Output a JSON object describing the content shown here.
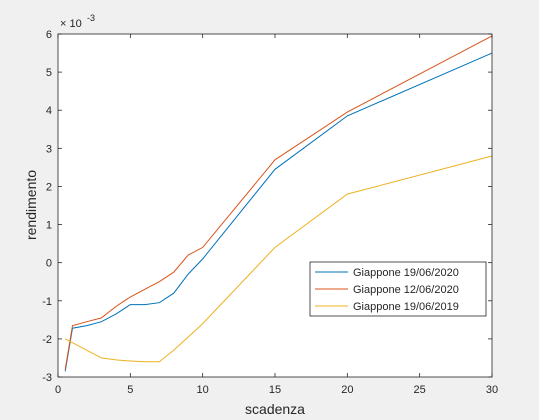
{
  "chart_data": {
    "type": "line",
    "title": "",
    "xlabel": "scadenza",
    "ylabel": "rendimento",
    "y_exponent": "× 10^-3",
    "y_exponent_base": "× 10",
    "y_exponent_power": "-3",
    "xlim": [
      0,
      30
    ],
    "ylim": [
      -3,
      6
    ],
    "x_ticks": [
      0,
      5,
      10,
      15,
      20,
      25,
      30
    ],
    "y_ticks": [
      -3,
      -2,
      -1,
      0,
      1,
      2,
      3,
      4,
      5,
      6
    ],
    "grid": false,
    "legend_position": "lower-right",
    "series": [
      {
        "name": "Giappone 19/06/2020",
        "color": "#0072BD",
        "x": [
          0.5,
          1,
          2,
          3,
          4,
          5,
          6,
          7,
          8,
          9,
          10,
          15,
          20,
          30
        ],
        "y": [
          -2.85,
          -1.72,
          -1.65,
          -1.55,
          -1.35,
          -1.1,
          -1.1,
          -1.05,
          -0.8,
          -0.3,
          0.1,
          2.45,
          3.85,
          5.5
        ]
      },
      {
        "name": "Giappone 12/06/2020",
        "color": "#D95319",
        "x": [
          0.5,
          1,
          2,
          3,
          4,
          5,
          6,
          7,
          8,
          9,
          10,
          15,
          20,
          30
        ],
        "y": [
          -2.8,
          -1.65,
          -1.55,
          -1.45,
          -1.15,
          -0.9,
          -0.7,
          -0.5,
          -0.25,
          0.2,
          0.4,
          2.7,
          3.95,
          5.95
        ]
      },
      {
        "name": "Giappone 19/06/2019",
        "color": "#EDB120",
        "x": [
          0.5,
          1,
          2,
          3,
          4,
          5,
          6,
          7,
          8,
          9,
          10,
          15,
          20,
          30
        ],
        "y": [
          -2.0,
          -2.1,
          -2.3,
          -2.5,
          -2.55,
          -2.58,
          -2.6,
          -2.6,
          -2.3,
          -1.95,
          -1.6,
          0.4,
          1.8,
          2.8
        ]
      }
    ]
  }
}
